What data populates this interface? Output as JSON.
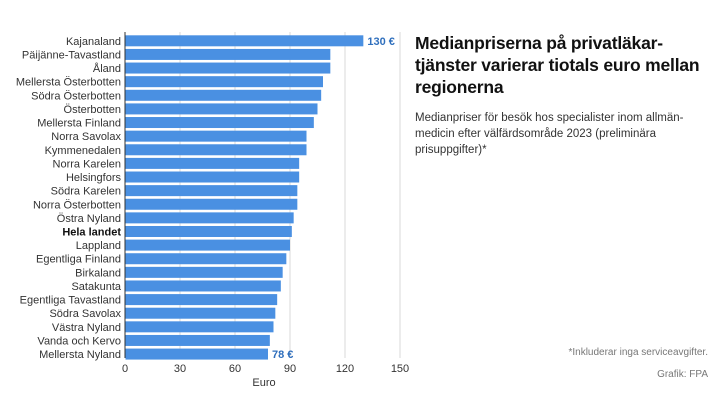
{
  "title": "Medianpriserna på privatläkar-tjänster varierar tiotals euro mellan regionerna",
  "subtitle": "Medianpriser för besök hos specialister inom allmän-medicin efter välfärdsområde 2023 (preliminära prisuppgifter)*",
  "footnote": "*Inkluderar inga serviceavgifter.",
  "source": "Grafik: FPA",
  "colors": {
    "bar": "#4a90e2",
    "data_label": "#2f6fbd"
  },
  "chart_data": {
    "type": "bar",
    "orientation": "horizontal",
    "xlabel": "Euro",
    "xlim": [
      0,
      150
    ],
    "xticks": [
      0,
      30,
      60,
      90,
      120,
      150
    ],
    "grid": true,
    "highlight_category": "Hela landet",
    "categories": [
      "Kajanaland",
      "Päijänne-Tavastland",
      "Åland",
      "Mellersta Österbotten",
      "Södra Österbotten",
      "Österbotten",
      "Mellersta Finland",
      "Norra Savolax",
      "Kymmenedalen",
      "Norra Karelen",
      "Helsingfors",
      "Södra Karelen",
      "Norra Österbotten",
      "Östra Nyland",
      "Hela landet",
      "Lappland",
      "Egentliga Finland",
      "Birkaland",
      "Satakunta",
      "Egentliga Tavastland",
      "Södra Savolax",
      "Västra Nyland",
      "Vanda och Kervo",
      "Mellersta Nyland"
    ],
    "values": [
      130,
      112,
      112,
      108,
      107,
      105,
      103,
      99,
      99,
      95,
      95,
      94,
      94,
      92,
      91,
      90,
      88,
      86,
      85,
      83,
      82,
      81,
      79,
      78
    ],
    "data_labels": [
      {
        "category": "Kajanaland",
        "text": "130 €"
      },
      {
        "category": "Mellersta Nyland",
        "text": "78 €"
      }
    ]
  }
}
